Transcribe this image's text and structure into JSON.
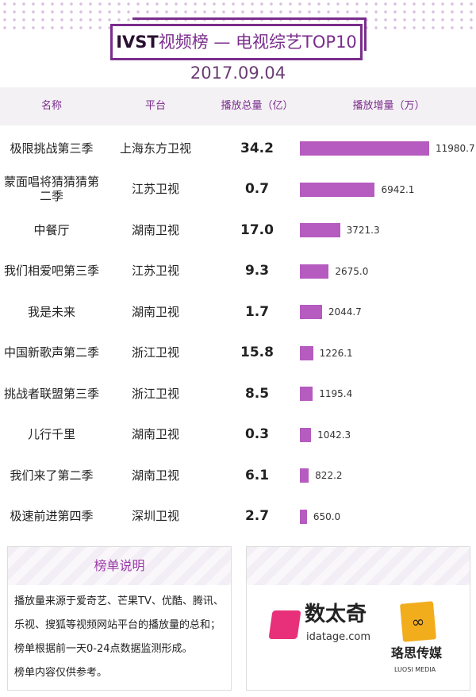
{
  "header": {
    "title_brand": "IVST",
    "title_rest": "视频榜 — 电视综艺TOP10",
    "date": "2017.09.04"
  },
  "colors": {
    "accent": "#7a2d8c",
    "bar": "#b65bbf"
  },
  "chart_data": {
    "type": "table",
    "columns": [
      "名称",
      "平台",
      "播放总量（亿）",
      "播放增量（万）"
    ],
    "rows": [
      {
        "name": "极限挑战第三季",
        "platform": "上海东方卫视",
        "total": "34.2",
        "increase": 11980.7,
        "increase_label": "11980.7"
      },
      {
        "name": "蒙面唱将猜猜猜第二季",
        "platform": "江苏卫视",
        "total": "0.7",
        "increase": 6942.1,
        "increase_label": "6942.1"
      },
      {
        "name": "中餐厅",
        "platform": "湖南卫视",
        "total": "17.0",
        "increase": 3721.3,
        "increase_label": "3721.3"
      },
      {
        "name": "我们相爱吧第三季",
        "platform": "江苏卫视",
        "total": "9.3",
        "increase": 2675.0,
        "increase_label": "2675.0"
      },
      {
        "name": "我是未来",
        "platform": "湖南卫视",
        "total": "1.7",
        "increase": 2044.7,
        "increase_label": "2044.7"
      },
      {
        "name": "中国新歌声第二季",
        "platform": "浙江卫视",
        "total": "15.8",
        "increase": 1226.1,
        "increase_label": "1226.1"
      },
      {
        "name": "挑战者联盟第三季",
        "platform": "浙江卫视",
        "total": "8.5",
        "increase": 1195.4,
        "increase_label": "1195.4"
      },
      {
        "name": "儿行千里",
        "platform": "湖南卫视",
        "total": "0.3",
        "increase": 1042.3,
        "increase_label": "1042.3"
      },
      {
        "name": "我们来了第二季",
        "platform": "湖南卫视",
        "total": "6.1",
        "increase": 822.2,
        "increase_label": "822.2"
      },
      {
        "name": "极速前进第四季",
        "platform": "深圳卫视",
        "total": "2.7",
        "increase": 650.0,
        "increase_label": "650.0"
      }
    ]
  },
  "notes": {
    "title": "榜单说明",
    "lines": [
      "播放量来源于爱奇艺、芒果TV、优酷、腾讯、乐视、搜狐等视频网站平台的播放量的总和；",
      "榜单根据前一天0-24点数据监测形成。",
      "榜单内容仅供参考。"
    ]
  },
  "logos": {
    "datage": "数太奇",
    "datage_url": "idatage.com",
    "luosi": "珞思传媒",
    "luosi_en": "LUOSI MEDIA"
  }
}
